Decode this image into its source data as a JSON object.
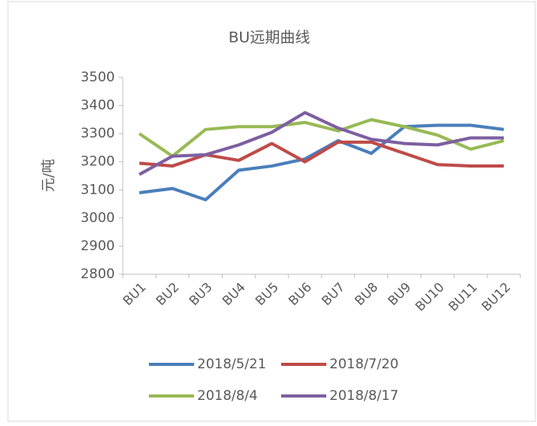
{
  "chart_data": {
    "type": "line",
    "title": "BU远期曲线",
    "y_label": "元/吨",
    "categories": [
      "BU1",
      "BU2",
      "BU3",
      "BU4",
      "BU5",
      "BU6",
      "BU7",
      "BU8",
      "BU9",
      "BU10",
      "BU11",
      "BU12"
    ],
    "series": [
      {
        "name": "2018/5/21",
        "color": "#4a7ebb",
        "values": [
          3090,
          3105,
          3065,
          3170,
          3185,
          3210,
          3275,
          3230,
          3325,
          3330,
          3330,
          3315
        ]
      },
      {
        "name": "2018/7/20",
        "color": "#be4b48",
        "values": [
          3195,
          3185,
          3225,
          3205,
          3265,
          3200,
          3270,
          3270,
          3230,
          3190,
          3185,
          3185
        ]
      },
      {
        "name": "2018/8/4",
        "color": "#98b954",
        "values": [
          3300,
          3220,
          3315,
          3325,
          3325,
          3340,
          3310,
          3350,
          3325,
          3295,
          3245,
          3275
        ]
      },
      {
        "name": "2018/8/17",
        "color": "#7d5fa0",
        "values": [
          3155,
          3220,
          3225,
          3260,
          3305,
          3375,
          3320,
          3280,
          3265,
          3260,
          3285,
          3285
        ]
      }
    ],
    "ylim": [
      2800,
      3500
    ],
    "yticks": [
      2800,
      2900,
      3000,
      3100,
      3200,
      3300,
      3400,
      3500
    ]
  }
}
